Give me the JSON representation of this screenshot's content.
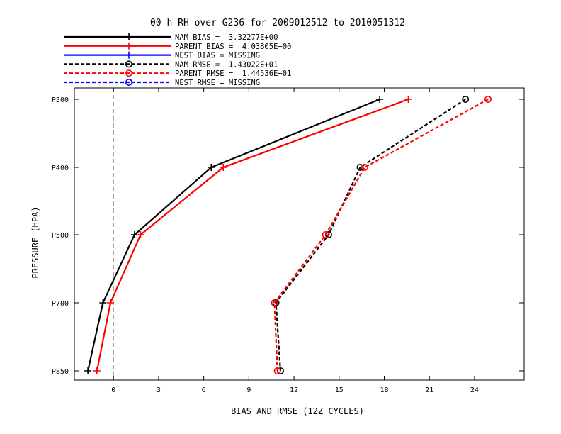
{
  "chart_data": {
    "type": "line",
    "title": "00 h RH over G236 for 2009012512 to 2010051312",
    "xlabel": "BIAS AND RMSE (12Z CYCLES)",
    "ylabel": "PRESSURE (HPA)",
    "xlim": [
      -2.6,
      27.3
    ],
    "x_ticks": [
      0,
      3,
      6,
      9,
      12,
      15,
      18,
      21,
      24
    ],
    "x_tick_labels": [
      "0",
      "3",
      "6",
      "9",
      "12",
      "15",
      "18",
      "21",
      "24"
    ],
    "y_categories": [
      "P300",
      "P400",
      "P500",
      "P700",
      "P850"
    ],
    "zero_line": true,
    "legend_position": "top-left",
    "series": [
      {
        "name": "NAM BIAS =  3.32277E+00",
        "color": "#000000",
        "dash": false,
        "marker": "plus",
        "values": [
          17.7,
          6.5,
          1.4,
          -0.7,
          -1.7
        ]
      },
      {
        "name": "PARENT BIAS =  4.03805E+00",
        "color": "#ff0000",
        "dash": false,
        "marker": "plus",
        "values": [
          19.6,
          7.3,
          1.8,
          -0.2,
          -1.1
        ]
      },
      {
        "name": "NEST BIAS = MISSING",
        "color": "#0000ff",
        "dash": false,
        "marker": "plus",
        "values": []
      },
      {
        "name": "NAM RMSE =  1.43022E+01",
        "color": "#000000",
        "dash": true,
        "marker": "circle",
        "values": [
          23.4,
          16.4,
          14.3,
          10.8,
          11.1
        ]
      },
      {
        "name": "PARENT RMSE =  1.44536E+01",
        "color": "#ff0000",
        "dash": true,
        "marker": "circle",
        "values": [
          24.9,
          16.7,
          14.1,
          10.7,
          10.9
        ]
      },
      {
        "name": "NEST RMSE = MISSING",
        "color": "#0000ff",
        "dash": true,
        "marker": "circle",
        "values": []
      }
    ]
  }
}
